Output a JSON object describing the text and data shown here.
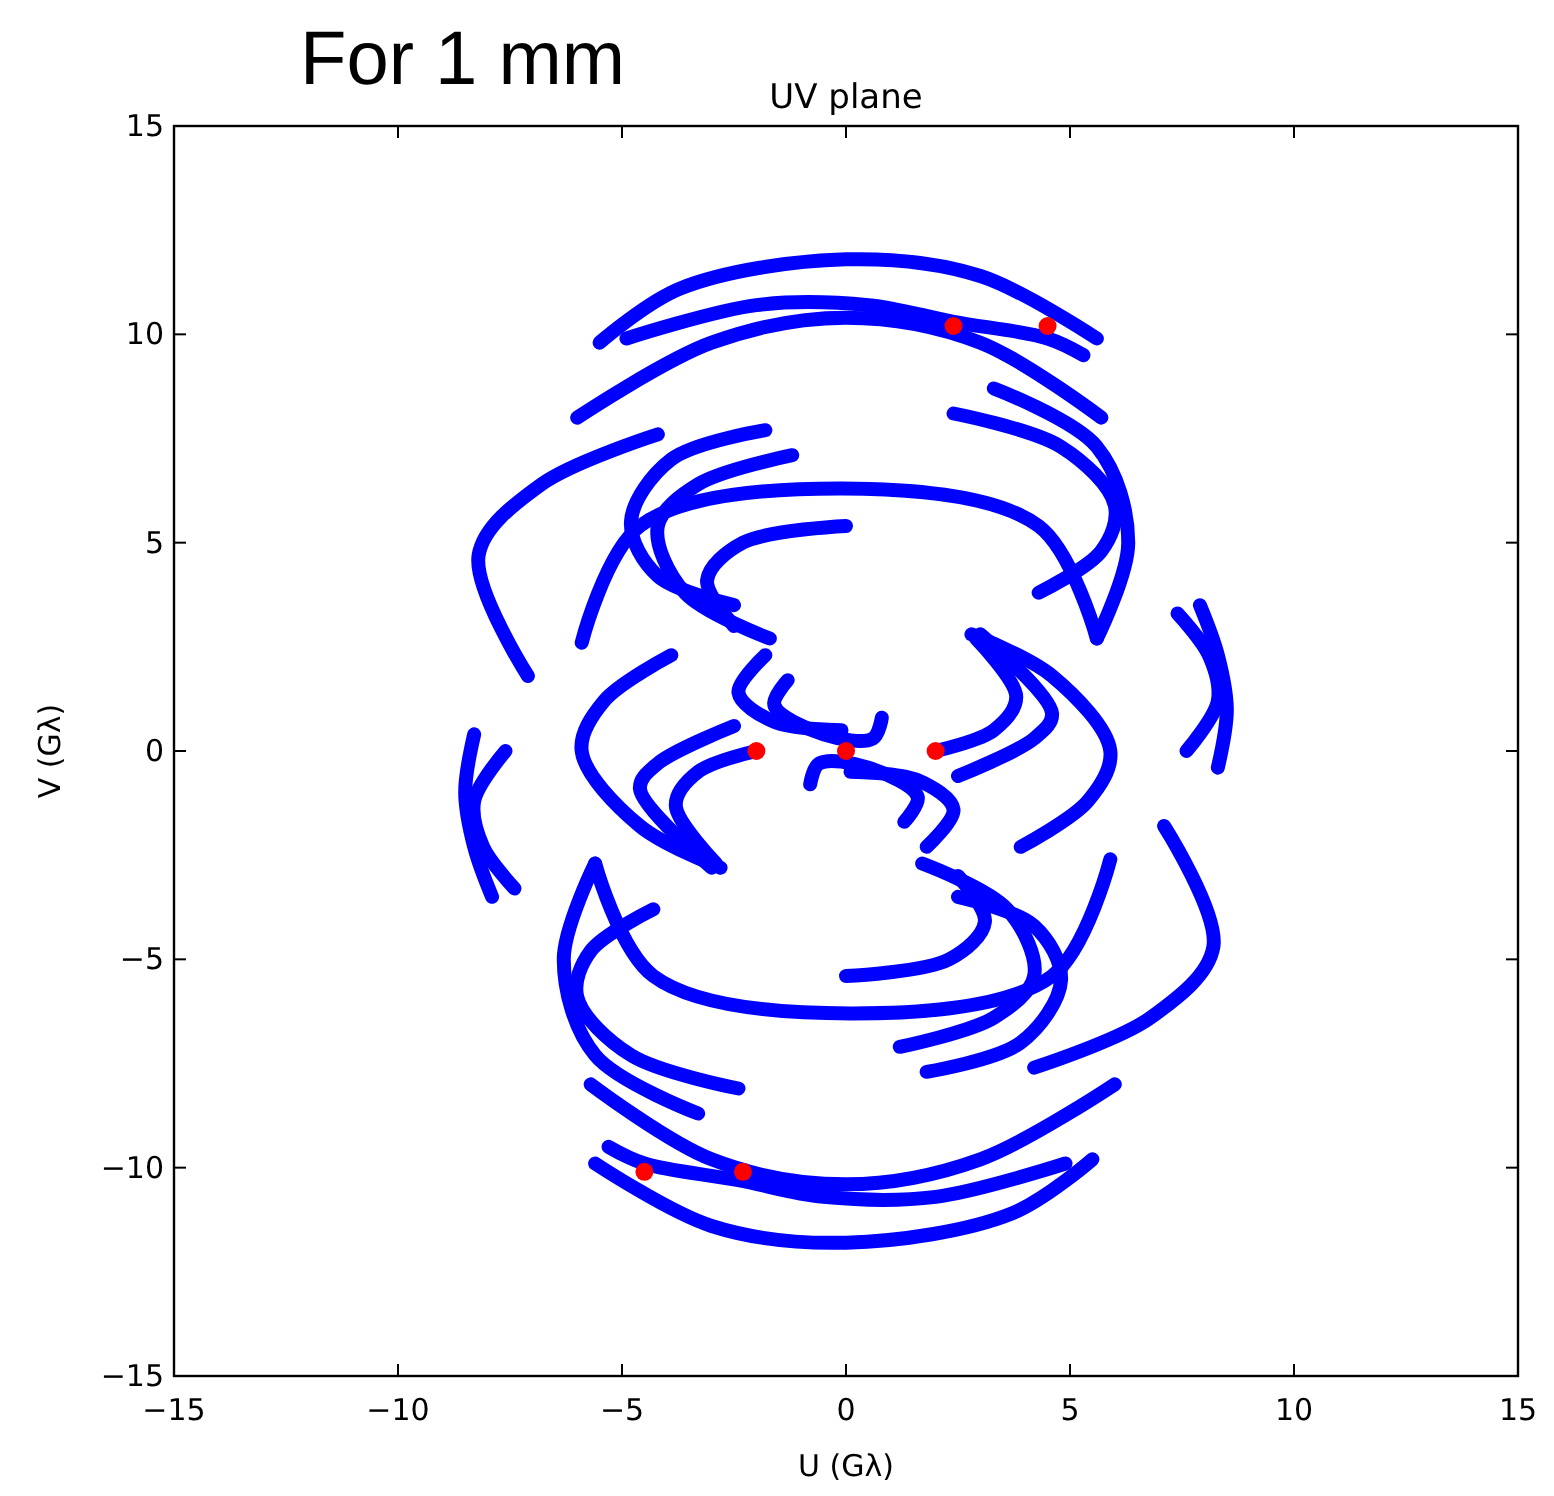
{
  "chart_data": {
    "type": "line",
    "title": "UV plane",
    "xlabel": "U (Gλ)",
    "ylabel": "V (Gλ)",
    "annotations": [
      "For 1 mm"
    ],
    "xlim": [
      -15,
      15
    ],
    "ylim": [
      -15,
      15
    ],
    "xticks": [
      -15,
      -10,
      -5,
      0,
      5,
      10,
      15
    ],
    "yticks": [
      -15,
      -10,
      -5,
      0,
      5,
      10,
      15
    ],
    "grid": false,
    "line_style": "solid",
    "series": [
      {
        "color": "#0000ff",
        "x": [
          -5.5,
          -3.7,
          0,
          3,
          5.6
        ],
        "values": [
          9.8,
          11.1,
          11.8,
          11.4,
          9.9
        ]
      },
      {
        "color": "#0000ff",
        "x": [
          -4.9,
          -2,
          0.5,
          2.4,
          4.5,
          5.3
        ],
        "values": [
          9.9,
          10.7,
          10.7,
          10.3,
          9.9,
          9.5
        ]
      },
      {
        "color": "#0000ff",
        "x": [
          -6.0,
          -3,
          0,
          3,
          5.7
        ],
        "values": [
          8.0,
          9.8,
          10.4,
          9.8,
          8.0
        ]
      },
      {
        "color": "#0000ff",
        "x": [
          -4.2,
          -6.8,
          -8.2,
          -7.1
        ],
        "values": [
          7.6,
          6.4,
          4.7,
          1.8
        ]
      },
      {
        "color": "#0000ff",
        "x": [
          3.3,
          5.6,
          6.3,
          5.6
        ],
        "values": [
          8.7,
          7.3,
          5.0,
          2.7
        ]
      },
      {
        "color": "#0000ff",
        "x": [
          2.4,
          4.8,
          6.0,
          5.7,
          4.3
        ],
        "values": [
          8.1,
          7.3,
          5.9,
          4.8,
          3.8
        ]
      },
      {
        "color": "#0000ff",
        "x": [
          -5.9,
          -4.6,
          -0.1,
          4.3,
          5.6
        ],
        "values": [
          2.6,
          5.4,
          6.3,
          5.4,
          2.7
        ]
      },
      {
        "color": "#0000ff",
        "x": [
          -1.8,
          -3.9,
          -4.8,
          -4.2,
          -2.5
        ],
        "values": [
          7.7,
          7.0,
          5.5,
          4.2,
          3.5
        ]
      },
      {
        "color": "#0000ff",
        "x": [
          -1.2,
          -3.3,
          -4.2,
          -3.6,
          -1.7
        ],
        "values": [
          7.1,
          6.4,
          5.4,
          3.8,
          2.7
        ]
      },
      {
        "color": "#0000ff",
        "x": [
          0,
          -2.3,
          -3.1,
          -2.5
        ],
        "values": [
          5.4,
          5.0,
          4.1,
          3.0
        ]
      },
      {
        "color": "#0000ff",
        "x": [
          -3.9,
          -5.4,
          -5.9,
          -4.6,
          -2.8
        ],
        "values": [
          2.3,
          1.2,
          0,
          -1.8,
          -2.8
        ]
      },
      {
        "color": "#0000ff",
        "x": [
          -2.0,
          -3.3,
          -3.8,
          -2.9
        ],
        "values": [
          0,
          -0.5,
          -1.3,
          -2.7
        ]
      },
      {
        "color": "#0000ff",
        "x": [
          -2.5,
          -4.2,
          -4.6,
          -3.0
        ],
        "values": [
          0.6,
          -0.3,
          -0.9,
          -2.8
        ]
      },
      {
        "color": "#0000ff",
        "x": [
          -1.8,
          -2.4,
          -1.6,
          -0.1
        ],
        "values": [
          2.3,
          1.4,
          0.7,
          0.5
        ]
      },
      {
        "color": "#0000ff",
        "x": [
          -1.3,
          -1.6,
          -0.5,
          0.6,
          0.8
        ],
        "values": [
          1.7,
          1.1,
          0.4,
          0.3,
          0.8
        ]
      },
      {
        "color": "#0000ff",
        "x": [
          -8.3,
          -8.5,
          -8.3,
          -7.9
        ],
        "values": [
          0.4,
          -1.0,
          -2.3,
          -3.5
        ]
      },
      {
        "color": "#0000ff",
        "x": [
          -7.6,
          -8.3,
          -8.1,
          -7.4
        ],
        "values": [
          0,
          -1.2,
          -2.3,
          -3.3
        ]
      },
      {
        "color": "#0000ff",
        "x": [
          5.5,
          3.7,
          0,
          -3,
          -5.6
        ],
        "values": [
          -9.8,
          -11.1,
          -11.8,
          -11.4,
          -9.9
        ]
      },
      {
        "color": "#0000ff",
        "x": [
          4.9,
          2,
          -0.5,
          -2.4,
          -4.5,
          -5.3
        ],
        "values": [
          -9.9,
          -10.7,
          -10.7,
          -10.3,
          -9.9,
          -9.5
        ]
      },
      {
        "color": "#0000ff",
        "x": [
          6.0,
          3,
          0,
          -3,
          -5.7
        ],
        "values": [
          -8.0,
          -9.8,
          -10.4,
          -9.8,
          -8.0
        ]
      },
      {
        "color": "#0000ff",
        "x": [
          4.2,
          6.8,
          8.2,
          7.1
        ],
        "values": [
          -7.6,
          -6.4,
          -4.7,
          -1.8
        ]
      },
      {
        "color": "#0000ff",
        "x": [
          -3.3,
          -5.6,
          -6.3,
          -5.6
        ],
        "values": [
          -8.7,
          -7.3,
          -5.0,
          -2.7
        ]
      },
      {
        "color": "#0000ff",
        "x": [
          -2.4,
          -4.8,
          -6.0,
          -5.7,
          -4.3
        ],
        "values": [
          -8.1,
          -7.3,
          -5.9,
          -4.8,
          -3.8
        ]
      },
      {
        "color": "#0000ff",
        "x": [
          5.9,
          4.6,
          0.1,
          -4.3,
          -5.6
        ],
        "values": [
          -2.6,
          -5.4,
          -6.3,
          -5.4,
          -2.7
        ]
      },
      {
        "color": "#0000ff",
        "x": [
          1.8,
          3.9,
          4.8,
          4.2,
          2.5
        ],
        "values": [
          -7.7,
          -7.0,
          -5.5,
          -4.2,
          -3.5
        ]
      },
      {
        "color": "#0000ff",
        "x": [
          1.2,
          3.3,
          4.2,
          3.6,
          1.7
        ],
        "values": [
          -7.1,
          -6.4,
          -5.4,
          -3.8,
          -2.7
        ]
      },
      {
        "color": "#0000ff",
        "x": [
          0,
          2.3,
          3.1,
          2.5
        ],
        "values": [
          -5.4,
          -5.0,
          -4.1,
          -3.0
        ]
      },
      {
        "color": "#0000ff",
        "x": [
          3.9,
          5.4,
          5.9,
          4.6,
          2.8
        ],
        "values": [
          -2.3,
          -1.2,
          0,
          1.8,
          2.8
        ]
      },
      {
        "color": "#0000ff",
        "x": [
          2.0,
          3.3,
          3.8,
          2.9
        ],
        "values": [
          0,
          0.5,
          1.3,
          2.7
        ]
      },
      {
        "color": "#0000ff",
        "x": [
          2.5,
          4.2,
          4.6,
          3.0
        ],
        "values": [
          -0.6,
          0.3,
          0.9,
          2.8
        ]
      },
      {
        "color": "#0000ff",
        "x": [
          1.8,
          2.4,
          1.6,
          0.1
        ],
        "values": [
          -2.3,
          -1.4,
          -0.7,
          -0.5
        ]
      },
      {
        "color": "#0000ff",
        "x": [
          1.3,
          1.6,
          0.5,
          -0.6,
          -0.8
        ],
        "values": [
          -1.7,
          -1.1,
          -0.4,
          -0.3,
          -0.8
        ]
      },
      {
        "color": "#0000ff",
        "x": [
          8.3,
          8.5,
          8.3,
          7.9
        ],
        "values": [
          -0.4,
          1.0,
          2.3,
          3.5
        ]
      },
      {
        "color": "#0000ff",
        "x": [
          7.6,
          8.3,
          8.1,
          7.4
        ],
        "values": [
          0,
          1.2,
          2.3,
          3.3
        ]
      },
      {
        "type": "scatter",
        "marker": "circle",
        "color": "#ff0000",
        "x": [
          2.4,
          4.5,
          -4.5,
          -2.3,
          -2,
          0,
          2
        ],
        "values": [
          10.2,
          10.2,
          -10.1,
          -10.1,
          0,
          0,
          0
        ]
      }
    ]
  }
}
